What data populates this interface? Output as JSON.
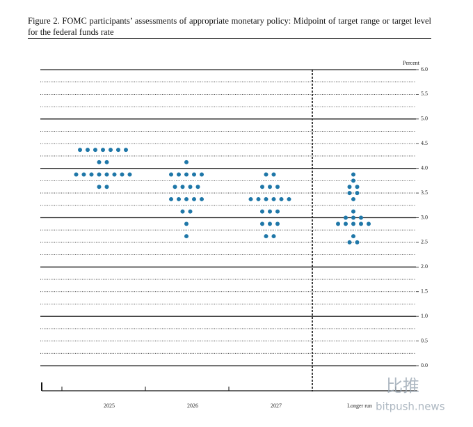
{
  "chart_data": {
    "type": "dot",
    "title": "Figure 2.  FOMC participants’ assessments of appropriate monetary policy: Midpoint of target range or target level for the federal funds rate",
    "y_label": "Percent",
    "categories": [
      "2025",
      "2026",
      "2027",
      "Longer run"
    ],
    "values": [
      [
        4.375,
        4.375,
        4.375,
        4.375,
        4.375,
        4.375,
        4.375,
        4.125,
        4.125,
        3.875,
        3.875,
        3.875,
        3.875,
        3.875,
        3.875,
        3.875,
        3.875,
        3.625,
        3.625
      ],
      [
        4.125,
        3.875,
        3.875,
        3.875,
        3.875,
        3.875,
        3.625,
        3.625,
        3.625,
        3.625,
        3.375,
        3.375,
        3.375,
        3.375,
        3.375,
        3.125,
        3.125,
        2.875,
        2.625
      ],
      [
        3.875,
        3.875,
        3.625,
        3.625,
        3.625,
        3.375,
        3.375,
        3.375,
        3.375,
        3.375,
        3.375,
        3.125,
        3.125,
        3.125,
        2.875,
        2.875,
        2.875,
        2.625,
        2.625
      ],
      [
        3.875,
        3.75,
        3.625,
        3.625,
        3.5,
        3.5,
        3.375,
        3.125,
        3.0,
        3.0,
        3.0,
        2.875,
        2.875,
        2.875,
        2.875,
        2.875,
        2.625,
        2.5,
        2.5
      ]
    ],
    "color": "#1f77a8",
    "ylim": [
      0,
      6
    ],
    "yticks": [
      {
        "value": 0,
        "label": "0.0"
      },
      {
        "value": 0.5,
        "label": "0.5"
      },
      {
        "value": 1,
        "label": "1.0"
      },
      {
        "value": 1.5,
        "label": "1.5"
      },
      {
        "value": 2,
        "label": "2.0"
      },
      {
        "value": 2.5,
        "label": "2.5"
      },
      {
        "value": 3,
        "label": "3.0"
      },
      {
        "value": 3.5,
        "label": "3.5"
      },
      {
        "value": 4,
        "label": "4.0"
      },
      {
        "value": 4.5,
        "label": "4.5"
      },
      {
        "value": 5,
        "label": "5.0"
      },
      {
        "value": 5.5,
        "label": "5.5"
      },
      {
        "value": 6,
        "label": "6.0"
      }
    ],
    "yminor": [
      0.25,
      0.75,
      1.25,
      1.75,
      2.25,
      2.75,
      3.25,
      3.75,
      4.25,
      4.75,
      5.25,
      5.75
    ],
    "grid": true
  },
  "watermark": [
    "比推",
    "bitpush.news"
  ]
}
